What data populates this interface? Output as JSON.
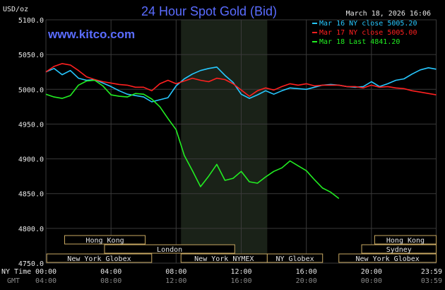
{
  "chart_data": {
    "type": "line",
    "title": "24 Hour Spot Gold (Bid)",
    "website": "www.kitco.com",
    "date_label": "March 18, 2026 16:06",
    "ylabel": "USD/oz",
    "ylim": [
      4750,
      5100
    ],
    "yticks": [
      "5100.0",
      "5050.0",
      "5000.0",
      "4950.0",
      "4900.0",
      "4850.0",
      "4800.0",
      "4750.0"
    ],
    "ytick_values": [
      5100,
      5050,
      5000,
      4950,
      4900,
      4850,
      4800,
      4750
    ],
    "xlim": [
      0,
      24
    ],
    "x_row_labels": {
      "ny": "NY Time",
      "gmt": "GMT"
    },
    "xticks_ny": [
      "00:00",
      "04:00",
      "08:00",
      "12:00",
      "16:00",
      "20:00",
      "23:59"
    ],
    "xticks_gmt": [
      "04:00",
      "08:00",
      "12:00",
      "16:00",
      "20:00",
      "00:00",
      "03:59"
    ],
    "xtick_hours": [
      0,
      4,
      8,
      12,
      16,
      20,
      23.98
    ],
    "highlight_hours": [
      8.3,
      13.6
    ],
    "colors": {
      "mar16": "#27c8ff",
      "mar17": "#ff2020",
      "mar18": "#22ee22",
      "grid": "#3a3a3a",
      "market": "#c8a862"
    },
    "series": [
      {
        "name": "Mar 16 NY close 5005.20",
        "color": "#27c8ff",
        "points": [
          [
            0,
            5025
          ],
          [
            0.5,
            5030
          ],
          [
            1,
            5021
          ],
          [
            1.5,
            5027
          ],
          [
            2,
            5016
          ],
          [
            2.5,
            5013
          ],
          [
            3,
            5014
          ],
          [
            3.5,
            5009
          ],
          [
            4,
            5004
          ],
          [
            4.5,
            4998
          ],
          [
            5,
            4993
          ],
          [
            5.5,
            4991
          ],
          [
            6,
            4989
          ],
          [
            6.5,
            4982
          ],
          [
            7,
            4985
          ],
          [
            7.5,
            4988
          ],
          [
            8,
            5005
          ],
          [
            8.5,
            5015
          ],
          [
            9,
            5022
          ],
          [
            9.5,
            5027
          ],
          [
            10,
            5030
          ],
          [
            10.5,
            5032
          ],
          [
            11,
            5020
          ],
          [
            11.5,
            5010
          ],
          [
            12,
            4993
          ],
          [
            12.5,
            4987
          ],
          [
            13,
            4992
          ],
          [
            13.5,
            4998
          ],
          [
            14,
            4993
          ],
          [
            14.5,
            4998
          ],
          [
            15,
            5002
          ],
          [
            15.5,
            5001
          ],
          [
            16,
            5000
          ],
          [
            16.5,
            5003
          ],
          [
            17,
            5006
          ],
          [
            17.5,
            5007
          ],
          [
            18,
            5006
          ],
          [
            18.5,
            5004
          ],
          [
            19,
            5003
          ],
          [
            19.5,
            5004
          ],
          [
            20,
            5011
          ],
          [
            20.5,
            5004
          ],
          [
            21,
            5008
          ],
          [
            21.5,
            5013
          ],
          [
            22,
            5015
          ],
          [
            22.5,
            5022
          ],
          [
            23,
            5028
          ],
          [
            23.5,
            5031
          ],
          [
            23.98,
            5029
          ]
        ]
      },
      {
        "name": "Mar 17 NY close 5005.00",
        "color": "#ff2020",
        "points": [
          [
            0,
            5025
          ],
          [
            0.5,
            5033
          ],
          [
            1,
            5037
          ],
          [
            1.5,
            5035
          ],
          [
            2,
            5027
          ],
          [
            2.5,
            5018
          ],
          [
            3,
            5014
          ],
          [
            3.5,
            5011
          ],
          [
            4,
            5009
          ],
          [
            4.5,
            5007
          ],
          [
            5,
            5006
          ],
          [
            5.5,
            5003
          ],
          [
            6,
            5003
          ],
          [
            6.5,
            4998
          ],
          [
            7,
            5008
          ],
          [
            7.5,
            5013
          ],
          [
            8,
            5008
          ],
          [
            8.5,
            5012
          ],
          [
            9,
            5016
          ],
          [
            9.5,
            5013
          ],
          [
            10,
            5011
          ],
          [
            10.5,
            5016
          ],
          [
            11,
            5014
          ],
          [
            11.5,
            5008
          ],
          [
            12,
            4999
          ],
          [
            12.5,
            4990
          ],
          [
            13,
            4998
          ],
          [
            13.5,
            5002
          ],
          [
            14,
            4999
          ],
          [
            14.5,
            5004
          ],
          [
            15,
            5008
          ],
          [
            15.5,
            5006
          ],
          [
            16,
            5008
          ],
          [
            16.5,
            5005
          ],
          [
            17,
            5006
          ],
          [
            17.5,
            5006
          ],
          [
            18,
            5006
          ],
          [
            18.5,
            5004
          ],
          [
            19,
            5004
          ],
          [
            19.5,
            5002
          ],
          [
            20,
            5006
          ],
          [
            20.5,
            5003
          ],
          [
            21,
            5004
          ],
          [
            21.5,
            5002
          ],
          [
            22,
            5001
          ],
          [
            22.5,
            4998
          ],
          [
            23,
            4996
          ],
          [
            23.5,
            4994
          ],
          [
            23.98,
            4992
          ]
        ]
      },
      {
        "name": "Mar 18 Last 4841.20",
        "color": "#22ee22",
        "points": [
          [
            0,
            4993
          ],
          [
            0.5,
            4989
          ],
          [
            1,
            4987
          ],
          [
            1.5,
            4991
          ],
          [
            2,
            5006
          ],
          [
            2.5,
            5012
          ],
          [
            3,
            5013
          ],
          [
            3.5,
            5005
          ],
          [
            4,
            4992
          ],
          [
            4.5,
            4990
          ],
          [
            5,
            4989
          ],
          [
            5.5,
            4994
          ],
          [
            6,
            4993
          ],
          [
            6.5,
            4986
          ],
          [
            7,
            4975
          ],
          [
            7.5,
            4958
          ],
          [
            8,
            4942
          ],
          [
            8.5,
            4905
          ],
          [
            9,
            4883
          ],
          [
            9.5,
            4860
          ],
          [
            10,
            4875
          ],
          [
            10.5,
            4892
          ],
          [
            11,
            4869
          ],
          [
            11.5,
            4872
          ],
          [
            12,
            4882
          ],
          [
            12.5,
            4867
          ],
          [
            13,
            4865
          ],
          [
            13.5,
            4874
          ],
          [
            14,
            4882
          ],
          [
            14.5,
            4887
          ],
          [
            15,
            4897
          ],
          [
            15.5,
            4890
          ],
          [
            16,
            4883
          ],
          [
            16.5,
            4870
          ],
          [
            17,
            4858
          ],
          [
            17.5,
            4852
          ],
          [
            18,
            4843
          ]
        ]
      }
    ],
    "markets_top": [
      {
        "label": "Hong Kong",
        "start": 1.15,
        "end": 6.1
      },
      {
        "label": "Hong Kong",
        "start": 20.2,
        "end": 23.98
      }
    ],
    "markets_mid": [
      {
        "label": "London",
        "start": 3.6,
        "end": 11.6
      },
      {
        "label": "Sydney",
        "start": 19.4,
        "end": 23.98
      }
    ],
    "markets_bottom": [
      {
        "label": "New York Globex",
        "start": 0.05,
        "end": 6.5
      },
      {
        "label": "New York NYMEX",
        "start": 8.3,
        "end": 13.6
      },
      {
        "label": "NY Globex",
        "start": 13.6,
        "end": 17.0
      },
      {
        "label": "New York Globex",
        "start": 18.0,
        "end": 23.98
      }
    ]
  }
}
